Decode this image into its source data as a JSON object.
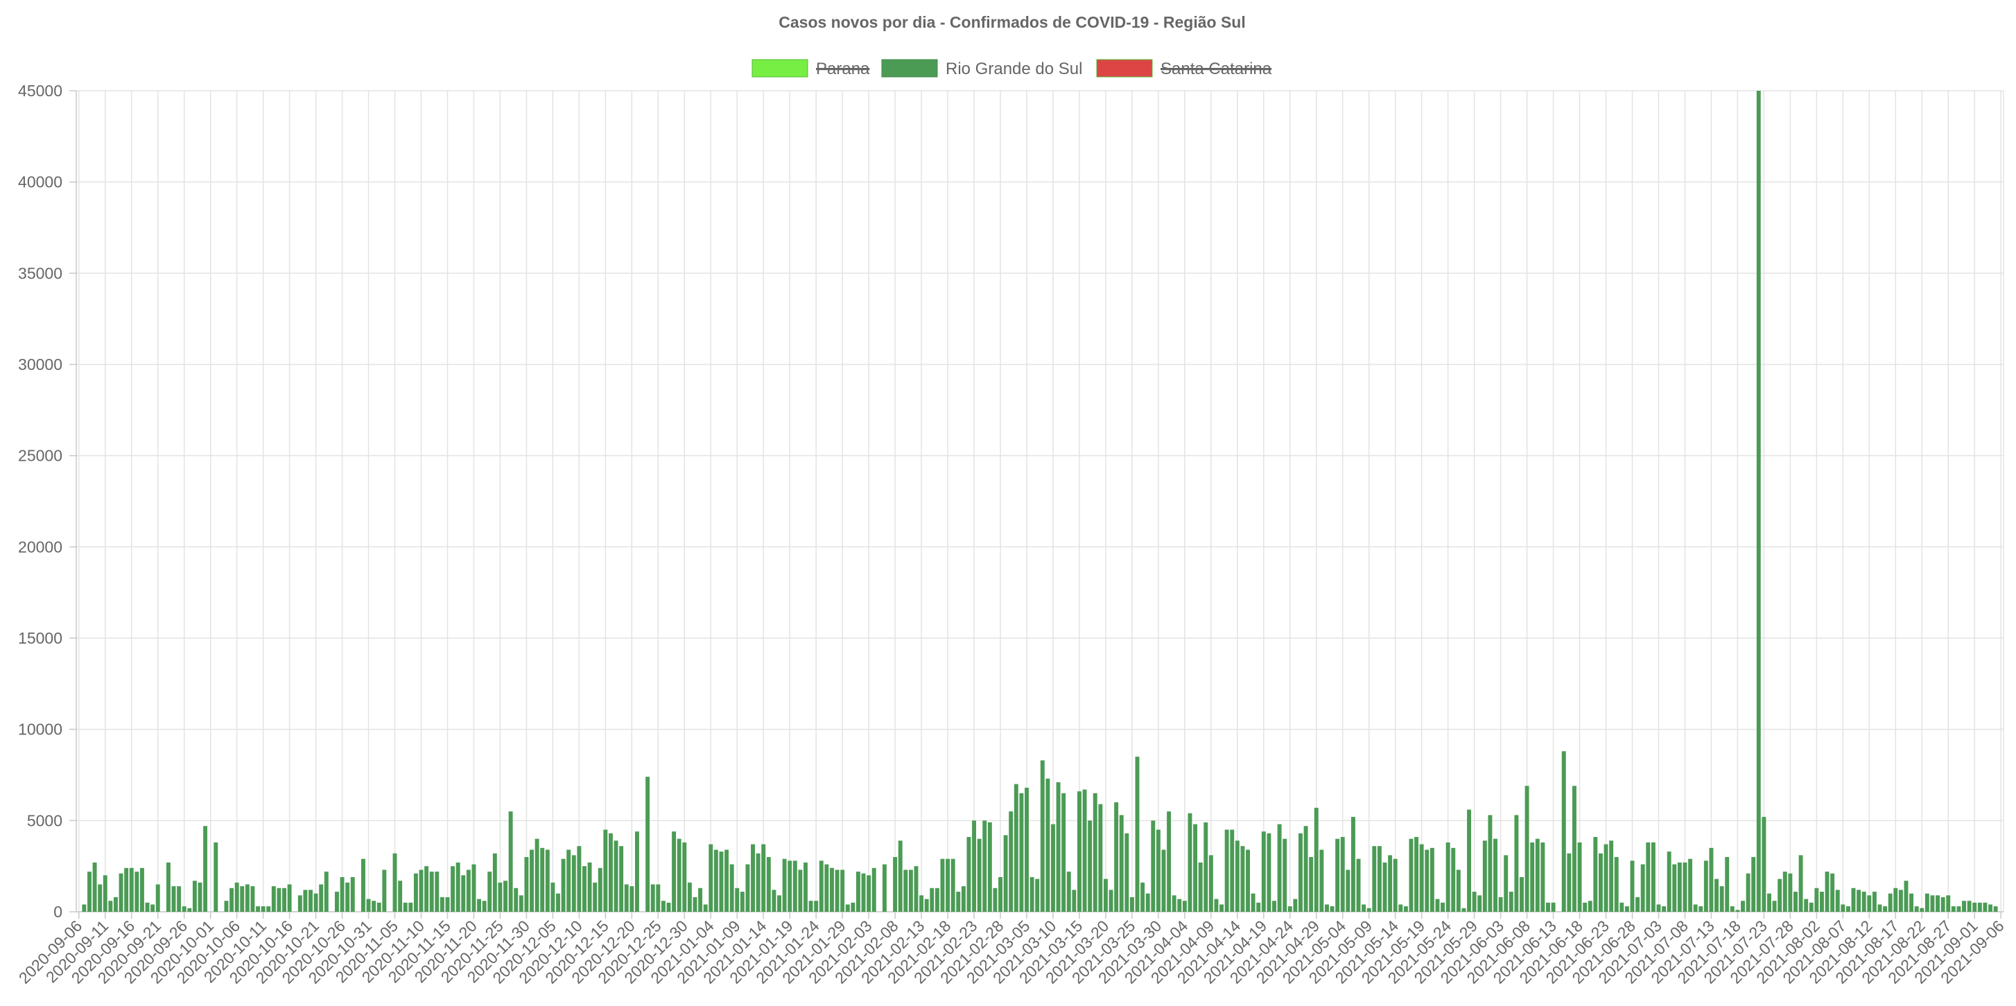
{
  "chart_data": {
    "type": "bar",
    "title": "Casos novos por dia - Confirmados de COVID-19 - Região Sul",
    "xlabel": "",
    "ylabel": "",
    "ylim": [
      0,
      45000
    ],
    "y_ticks": [
      "0",
      "5000",
      "10000",
      "15000",
      "20000",
      "25000",
      "30000",
      "35000",
      "40000",
      "45000"
    ],
    "x_start_date": "2020-09-06",
    "x_tick_labels": [
      "2020-09-06",
      "2020-09-11",
      "2020-09-16",
      "2020-09-21",
      "2020-09-26",
      "2020-10-01",
      "2020-10-06",
      "2020-10-11",
      "2020-10-16",
      "2020-10-21",
      "2020-10-26",
      "2020-10-31",
      "2020-11-05",
      "2020-11-10",
      "2020-11-15",
      "2020-11-20",
      "2020-11-25",
      "2020-11-30",
      "2020-12-05",
      "2020-12-10",
      "2020-12-15",
      "2020-12-20",
      "2020-12-25",
      "2020-12-30",
      "2021-01-04",
      "2021-01-09",
      "2021-01-14",
      "2021-01-19",
      "2021-01-24",
      "2021-01-29",
      "2021-02-03",
      "2021-02-08",
      "2021-02-13",
      "2021-02-18",
      "2021-02-23",
      "2021-02-28",
      "2021-03-05",
      "2021-03-10",
      "2021-03-15",
      "2021-03-20",
      "2021-03-25",
      "2021-03-30",
      "2021-04-04",
      "2021-04-09",
      "2021-04-14",
      "2021-04-19",
      "2021-04-24",
      "2021-04-29",
      "2021-05-04",
      "2021-05-09",
      "2021-05-14",
      "2021-05-19",
      "2021-05-24",
      "2021-05-29",
      "2021-06-03",
      "2021-06-08",
      "2021-06-13",
      "2021-06-18",
      "2021-06-23",
      "2021-06-28",
      "2021-07-03",
      "2021-07-08",
      "2021-07-13",
      "2021-07-18",
      "2021-07-23",
      "2021-07-28",
      "2021-08-02",
      "2021-08-07",
      "2021-08-12",
      "2021-08-17",
      "2021-08-22",
      "2021-08-27",
      "2021-09-01",
      "2021-09-06"
    ],
    "grid": true,
    "legend_position": "top",
    "series": [
      {
        "name": "Parana",
        "color": "#77ee44",
        "hidden": true,
        "values": []
      },
      {
        "name": "Santa Catarina",
        "color": "#dd4444",
        "hidden": true,
        "values": []
      },
      {
        "name": "Rio Grande do Sul",
        "color": "#4b9b55",
        "hidden": false,
        "values": [
          0,
          400,
          2200,
          2700,
          1500,
          2000,
          600,
          800,
          2100,
          2400,
          2400,
          2200,
          2400,
          500,
          400,
          1500,
          0,
          2700,
          1400,
          1400,
          300,
          200,
          1700,
          1600,
          4700,
          0,
          3800,
          0,
          600,
          1300,
          1600,
          1400,
          1500,
          1400,
          300,
          300,
          300,
          1400,
          1300,
          1300,
          1500,
          0,
          900,
          1200,
          1200,
          1000,
          1500,
          2200,
          0,
          1100,
          1900,
          1600,
          1900,
          0,
          2900,
          700,
          600,
          500,
          2300,
          0,
          3200,
          1700,
          500,
          500,
          2100,
          2300,
          2500,
          2200,
          2200,
          800,
          800,
          2500,
          2700,
          2000,
          2300,
          2600,
          700,
          600,
          2200,
          3200,
          1600,
          1700,
          5500,
          1300,
          900,
          3000,
          3400,
          4000,
          3500,
          3400,
          1600,
          1000,
          2900,
          3400,
          3100,
          3600,
          2500,
          2700,
          1600,
          2400,
          4500,
          4300,
          3900,
          3600,
          1500,
          1400,
          4400,
          0,
          7400,
          1500,
          1500,
          600,
          500,
          4400,
          4000,
          3800,
          1600,
          800,
          1300,
          400,
          3700,
          3400,
          3300,
          3400,
          2600,
          1300,
          1100,
          2600,
          3700,
          3200,
          3700,
          3000,
          1200,
          900,
          2900,
          2800,
          2800,
          2300,
          2700,
          600,
          600,
          2800,
          2600,
          2400,
          2300,
          2300,
          400,
          500,
          2200,
          2100,
          2000,
          2400,
          0,
          2600,
          0,
          3000,
          3900,
          2300,
          2300,
          2500,
          900,
          700,
          1300,
          1300,
          2900,
          2900,
          2900,
          1100,
          1400,
          4100,
          5000,
          4000,
          5000,
          4900,
          1300,
          1900,
          4200,
          5500,
          7000,
          6500,
          6800,
          1900,
          1800,
          8300,
          7300,
          4800,
          7100,
          6500,
          2200,
          1200,
          6600,
          6700,
          5000,
          6500,
          5900,
          1800,
          1200,
          6000,
          5300,
          4300,
          800,
          8500,
          1600,
          1000,
          5000,
          4500,
          3400,
          5500,
          900,
          700,
          600,
          5400,
          4800,
          2700,
          4900,
          3100,
          700,
          400,
          4500,
          4500,
          3900,
          3600,
          3400,
          1000,
          500,
          4400,
          4300,
          600,
          4800,
          4000,
          300,
          700,
          4300,
          4700,
          3000,
          5700,
          3400,
          400,
          300,
          4000,
          4100,
          2300,
          5200,
          2900,
          400,
          200,
          3600,
          3600,
          2700,
          3100,
          2900,
          400,
          300,
          4000,
          4100,
          3700,
          3400,
          3500,
          700,
          500,
          3800,
          3500,
          2300,
          200,
          5600,
          1100,
          900,
          3900,
          5300,
          4000,
          800,
          3100,
          1100,
          5300,
          1900,
          6900,
          3800,
          4000,
          3800,
          500,
          500,
          0,
          8800,
          3200,
          6900,
          3800,
          500,
          600,
          4100,
          3200,
          3700,
          3900,
          3000,
          500,
          300,
          2800,
          800,
          2600,
          3800,
          3800,
          400,
          300,
          3300,
          2600,
          2700,
          2700,
          2900,
          400,
          300,
          2800,
          3500,
          1800,
          1400,
          3000,
          300,
          100,
          600,
          2100,
          3000,
          45000,
          5200,
          1000,
          600,
          1800,
          2200,
          2100,
          1100,
          3100,
          700,
          500,
          1300,
          1100,
          2200,
          2100,
          1200,
          400,
          300,
          1300,
          1200,
          1100,
          900,
          1100,
          400,
          300,
          1000,
          1300,
          1200,
          1700,
          1000,
          300,
          200,
          1000,
          900,
          900,
          800,
          900,
          300,
          300,
          600,
          600,
          500,
          500,
          500,
          400,
          300
        ]
      }
    ]
  }
}
